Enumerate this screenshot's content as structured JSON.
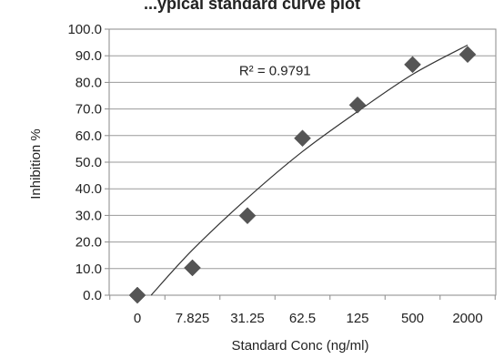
{
  "chart_data": {
    "type": "scatter",
    "title": "...ypical standard curve plot",
    "xlabel": "Standard Conc (ng/ml)",
    "ylabel": "Inhibition %",
    "categories": [
      "0",
      "7.825",
      "31.25",
      "62.5",
      "125",
      "500",
      "2000"
    ],
    "y_ticks": [
      "0.0",
      "10.0",
      "20.0",
      "30.0",
      "40.0",
      "50.0",
      "60.0",
      "70.0",
      "80.0",
      "90.0",
      "100.0"
    ],
    "ylim": [
      0,
      100
    ],
    "grid": "horizontal",
    "series": [
      {
        "values": [
          0.0,
          10.3,
          29.9,
          59.0,
          71.5,
          86.7,
          90.5
        ],
        "marker": "diamond",
        "color": "#555555"
      }
    ],
    "trendline": {
      "type": "polynomial",
      "color": "#333333",
      "points": [
        {
          "x": 0.25,
          "y": 0
        },
        {
          "x": 1,
          "y": 17
        },
        {
          "x": 2,
          "y": 36.5
        },
        {
          "x": 3,
          "y": 54
        },
        {
          "x": 4,
          "y": 69
        },
        {
          "x": 5,
          "y": 83
        },
        {
          "x": 6,
          "y": 94
        }
      ]
    },
    "annotations": [
      {
        "text": "R² = 0.9791",
        "x": 2.5,
        "y": 84.5
      }
    ]
  }
}
